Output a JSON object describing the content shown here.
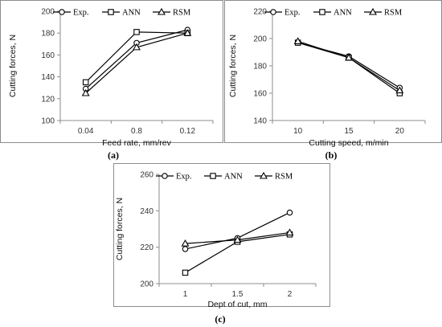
{
  "chart_data": [
    {
      "type": "line",
      "panel_label": "(a)",
      "xlabel": "Feed rate, mm/rev",
      "ylabel": "Cutting forces, N",
      "categories": [
        "0.04",
        "0.8",
        "0.12"
      ],
      "ylim": [
        100,
        200
      ],
      "yticks": [
        100,
        120,
        140,
        160,
        180,
        200
      ],
      "legend_position": "top",
      "series": [
        {
          "name": "Exp.",
          "marker": "circle",
          "values": [
            129,
            171,
            183
          ]
        },
        {
          "name": "ANN",
          "marker": "square",
          "values": [
            135,
            181,
            180
          ]
        },
        {
          "name": "RSM",
          "marker": "triangle",
          "values": [
            125,
            167,
            180
          ]
        }
      ]
    },
    {
      "type": "line",
      "panel_label": "(b)",
      "xlabel": "Cutting speed, m/min",
      "ylabel": "Cutting forces, N",
      "categories": [
        "10",
        "15",
        "20"
      ],
      "ylim": [
        140,
        220
      ],
      "yticks": [
        140,
        160,
        180,
        200,
        220
      ],
      "legend_position": "top",
      "series": [
        {
          "name": "Exp.",
          "marker": "circle",
          "values": [
            197,
            187,
            164
          ]
        },
        {
          "name": "ANN",
          "marker": "square",
          "values": [
            197,
            186,
            160
          ]
        },
        {
          "name": "RSM",
          "marker": "triangle",
          "values": [
            198,
            186,
            162
          ]
        }
      ]
    },
    {
      "type": "line",
      "panel_label": "(c)",
      "xlabel": "Dept of cut, mm",
      "ylabel": "Cutting forces, N",
      "categories": [
        "1",
        "1.5",
        "2"
      ],
      "ylim": [
        200,
        260
      ],
      "yticks": [
        200,
        220,
        240,
        260
      ],
      "legend_position": "top",
      "series": [
        {
          "name": "Exp.",
          "marker": "circle",
          "values": [
            219,
            225,
            239
          ]
        },
        {
          "name": "ANN",
          "marker": "square",
          "values": [
            206,
            223,
            227
          ]
        },
        {
          "name": "RSM",
          "marker": "triangle",
          "values": [
            222,
            224,
            228
          ]
        }
      ]
    }
  ]
}
